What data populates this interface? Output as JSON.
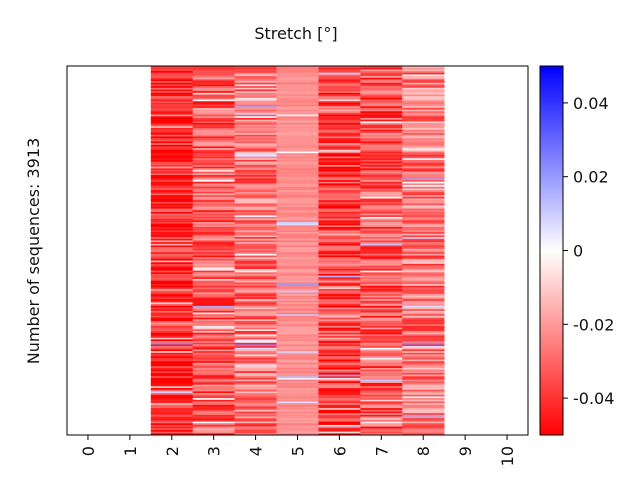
{
  "chart_data": {
    "type": "heatmap",
    "title": "Stretch [°]",
    "ylabel": "Number of sequences: 3913",
    "xlabel": "",
    "x_categories": [
      "0",
      "1",
      "2",
      "3",
      "4",
      "5",
      "6",
      "7",
      "8",
      "9",
      "10"
    ],
    "columns_with_data": [
      2,
      3,
      4,
      5,
      6,
      7,
      8
    ],
    "column_base_values": {
      "2": -0.043,
      "3": -0.032,
      "4": -0.027,
      "5": -0.022,
      "6": -0.037,
      "7": -0.034,
      "8": -0.026
    },
    "rows_rendered": 220,
    "colorbar": {
      "cmap": "bwr",
      "vmin": -0.05,
      "vmax": 0.05,
      "ticks": [
        "0.04",
        "0.02",
        "0",
        "-0.02",
        "-0.04"
      ],
      "tick_values": [
        0.04,
        0.02,
        0,
        -0.02,
        -0.04
      ],
      "color_low": "#ff0000",
      "color_mid": "#ffffff",
      "color_high": "#0000ff"
    }
  }
}
